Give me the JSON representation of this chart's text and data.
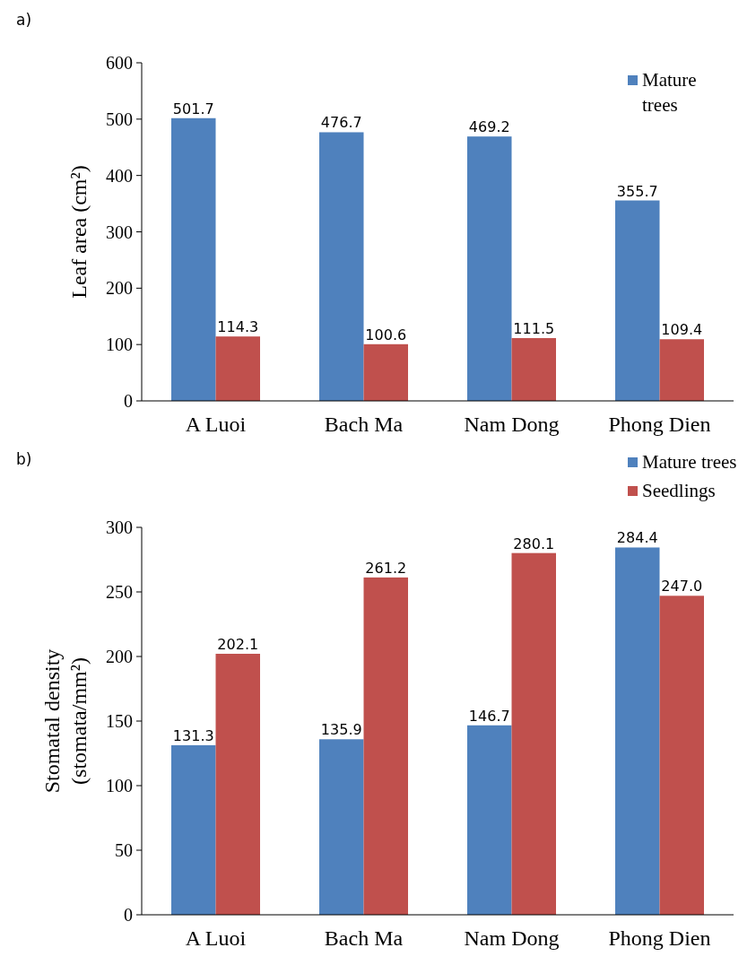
{
  "chart_data": [
    {
      "type": "bar",
      "annotations": [
        "a)"
      ],
      "ylabel": "Leaf area (cm²)",
      "categories": [
        "A Luoi",
        "Bach Ma",
        "Nam Dong",
        "Phong Dien"
      ],
      "series": [
        {
          "name": "Mature trees",
          "color": "#4f81bd",
          "values": [
            501.7,
            476.7,
            469.2,
            355.7
          ],
          "value_labels": [
            "501.7",
            "476.7",
            "469.2",
            "355.7"
          ]
        },
        {
          "color": "#c0504d",
          "values": [
            114.3,
            100.6,
            111.5,
            109.4
          ],
          "value_labels": [
            "114.3",
            "100.6",
            "111.5",
            "109.4"
          ]
        }
      ],
      "ylim": [
        0,
        600
      ],
      "yticks": [
        0,
        100,
        200,
        300,
        400,
        500,
        600
      ],
      "legend": "top right",
      "grid": false
    },
    {
      "type": "bar",
      "annotations": [
        "b)"
      ],
      "ylabel": "Stomatal density (stomata/mm²)",
      "categories": [
        "A Luoi",
        "Bach Ma",
        "Nam Dong",
        "Phong Dien"
      ],
      "series": [
        {
          "name": "Mature trees",
          "color": "#4f81bd",
          "values": [
            131.3,
            135.9,
            146.7,
            284.4
          ],
          "value_labels": [
            "131.3",
            "135.9",
            "146.7",
            "284.4"
          ]
        },
        {
          "name": "Seedlings",
          "color": "#c0504d",
          "values": [
            202.1,
            261.2,
            280.1,
            247
          ],
          "value_labels": [
            "202.1",
            "261.2",
            "280.1",
            "247.0"
          ]
        }
      ],
      "ylim": [
        0,
        300
      ],
      "yticks": [
        0,
        50,
        100,
        150,
        200,
        250,
        300
      ],
      "legend": "top right",
      "grid": false
    }
  ]
}
